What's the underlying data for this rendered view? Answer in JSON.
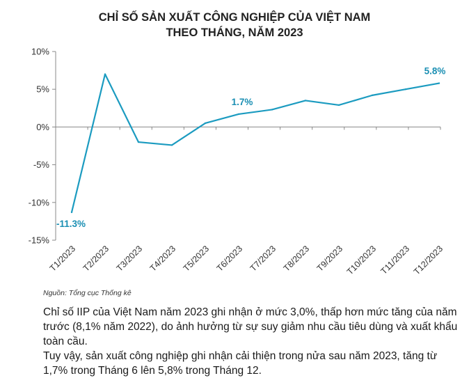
{
  "chart_data": {
    "type": "line",
    "title_lines": [
      "CHỈ SỐ SẢN XUẤT CÔNG NGHIỆP CỦA VIỆT NAM",
      "THEO THÁNG, NĂM 2023"
    ],
    "categories": [
      "T1/2023",
      "T2/2023",
      "T3/2023",
      "T4/2023",
      "T5/2023",
      "T6/2023",
      "T7/2023",
      "T8/2023",
      "T9/2023",
      "T10/2023",
      "T11/2023",
      "T12/2023"
    ],
    "values": [
      -11.3,
      7.0,
      -2.0,
      -2.4,
      0.5,
      1.7,
      2.3,
      3.5,
      2.9,
      4.2,
      5.0,
      5.8
    ],
    "y_ticks": [
      10,
      5,
      0,
      -5,
      -10,
      -15
    ],
    "y_tick_labels": [
      "10%",
      "5%",
      "0%",
      "-5%",
      "-10%",
      "-15%"
    ],
    "ylim": [
      -15,
      10
    ],
    "data_labels": [
      {
        "index": 0,
        "text": "-11.3%"
      },
      {
        "index": 5,
        "text": "1.7%"
      },
      {
        "index": 11,
        "text": "5.8%"
      }
    ],
    "line_color": "#1b9bc0",
    "grid": false,
    "source": "Nguồn: Tổng cục Thống kê"
  },
  "commentary": [
    "Chỉ số IIP của Việt Nam năm 2023 ghi nhận ở mức 3,0%, thấp hơn mức tăng của năm trước (8,1% năm 2022), do ảnh hưởng từ sự suy giảm nhu cầu tiêu dùng và xuất khẩu toàn cầu.",
    "Tuy vậy, sản xuất công nghiệp ghi nhận cải thiện trong nửa sau năm 2023, tăng từ 1,7% trong Tháng 6 lên 5,8% trong Tháng 12."
  ]
}
